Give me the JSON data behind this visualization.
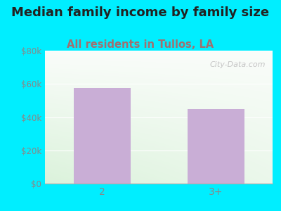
{
  "title": "Median family income by family size",
  "subtitle": "All residents in Tullos, LA",
  "categories": [
    "2",
    "3+"
  ],
  "values": [
    57500,
    45000
  ],
  "bar_color": "#c9aed6",
  "title_fontsize": 13,
  "subtitle_fontsize": 10.5,
  "subtitle_color": "#a07070",
  "title_color": "#222222",
  "ylim": [
    0,
    80000
  ],
  "yticks": [
    0,
    20000,
    40000,
    60000,
    80000
  ],
  "ytick_labels": [
    "$0",
    "$20k",
    "$40k",
    "$60k",
    "$80k"
  ],
  "background_outer": "#00eeff",
  "watermark": "City-Data.com",
  "watermark_color": "#bbbbbb",
  "tick_color": "#888888"
}
